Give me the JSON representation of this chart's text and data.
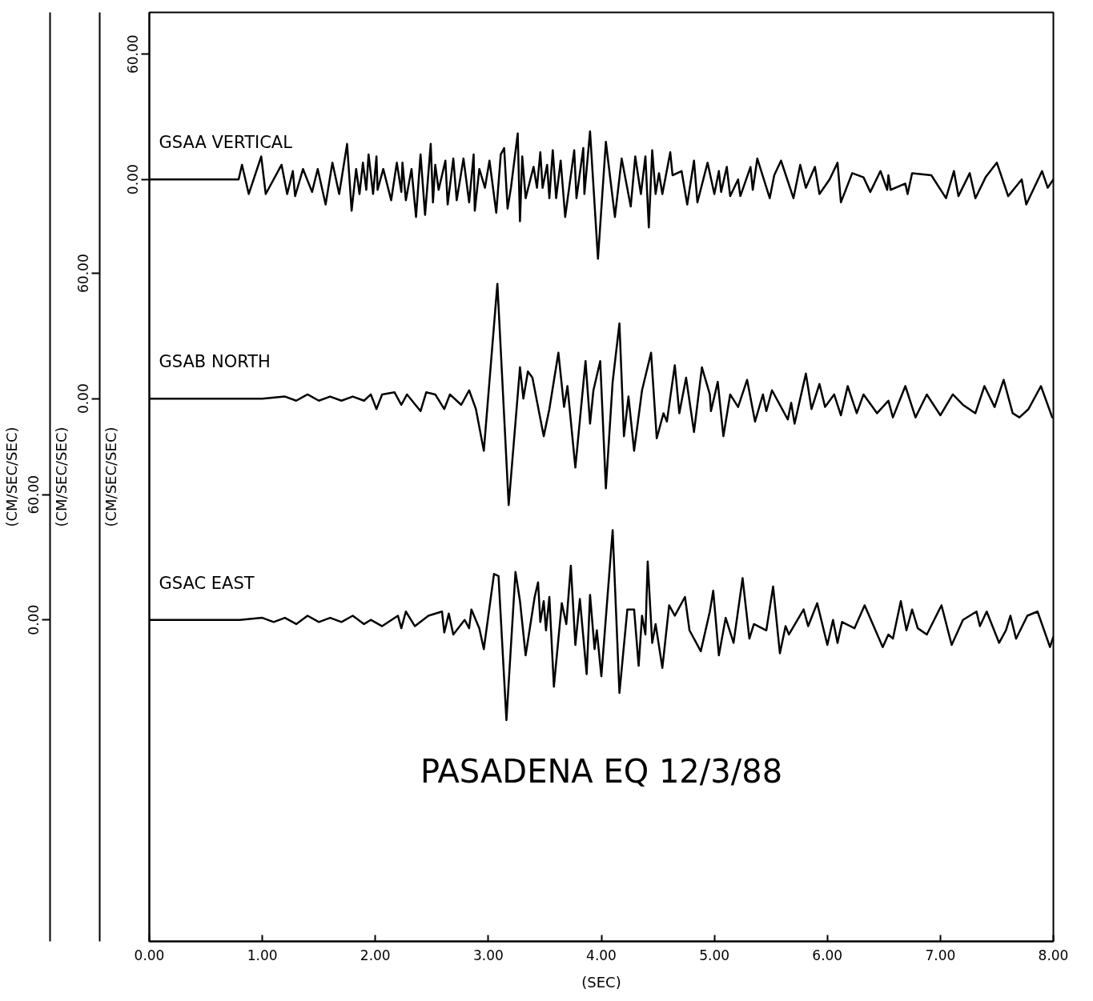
{
  "chart_data": {
    "type": "line",
    "title": "PASADENA EQ 12/3/88",
    "xlabel": "(SEC)",
    "ylabel": "(CM/SEC/SEC)",
    "y2label": "(CM/SEC/SEC)",
    "y3label": "(CM/SEC/SEC)",
    "xlim": [
      0,
      8
    ],
    "xticks": [
      {
        "value": 0,
        "label": "0.00"
      },
      {
        "value": 1,
        "label": "1.00"
      },
      {
        "value": 2,
        "label": "2.00"
      },
      {
        "value": 3,
        "label": "3.00"
      },
      {
        "value": 4,
        "label": "4.00"
      },
      {
        "value": 5,
        "label": "5.00"
      },
      {
        "value": 6,
        "label": "6.00"
      },
      {
        "value": 7,
        "label": "7.00"
      },
      {
        "value": 8,
        "label": "8.00"
      }
    ],
    "ylim": [
      -365,
      80
    ],
    "yticks": [
      {
        "value": 0,
        "label": "0.00"
      },
      {
        "value": 60,
        "label": "60.00"
      }
    ],
    "y2lim": [
      -260,
      185
    ],
    "y2ticks": [
      {
        "value": 0,
        "label": "0.00"
      },
      {
        "value": 60,
        "label": "60.00"
      }
    ],
    "y3lim": [
      -154,
      291
    ],
    "y3ticks": [
      {
        "value": 0,
        "label": "0.00"
      },
      {
        "value": 60,
        "label": "60.00"
      }
    ],
    "grid": false,
    "series": [
      {
        "name": "GSAA   VERTICAL",
        "color": "#000000",
        "axis": "y",
        "x": [
          0,
          0.75,
          0.79,
          0.82,
          0.88,
          0.99,
          1.03,
          1.17,
          1.22,
          1.27,
          1.29,
          1.36,
          1.44,
          1.49,
          1.56,
          1.62,
          1.68,
          1.75,
          1.79,
          1.83,
          1.86,
          1.89,
          1.92,
          1.94,
          1.98,
          2.01,
          2.02,
          2.07,
          2.14,
          2.19,
          2.23,
          2.24,
          2.27,
          2.32,
          2.36,
          2.4,
          2.44,
          2.49,
          2.51,
          2.53,
          2.56,
          2.62,
          2.64,
          2.69,
          2.72,
          2.78,
          2.83,
          2.87,
          2.88,
          2.92,
          2.97,
          3.01,
          3.07,
          3.11,
          3.14,
          3.17,
          3.2,
          3.26,
          3.28,
          3.3,
          3.33,
          3.4,
          3.43,
          3.46,
          3.48,
          3.52,
          3.54,
          3.57,
          3.6,
          3.64,
          3.68,
          3.76,
          3.78,
          3.84,
          3.85,
          3.9,
          3.97,
          4.04,
          4.12,
          4.18,
          4.26,
          4.3,
          4.35,
          4.39,
          4.42,
          4.45,
          4.48,
          4.51,
          4.54,
          4.61,
          4.63,
          4.71,
          4.76,
          4.82,
          4.85,
          4.94,
          5.0,
          5.04,
          5.06,
          5.11,
          5.14,
          5.21,
          5.23,
          5.32,
          5.34,
          5.38,
          5.49,
          5.53,
          5.59,
          5.7,
          5.76,
          5.81,
          5.89,
          5.93,
          6.02,
          6.09,
          6.12,
          6.22,
          6.32,
          6.38,
          6.47,
          6.53,
          6.54,
          6.56,
          6.69,
          6.71,
          6.75,
          6.92,
          7.05,
          7.12,
          7.16,
          7.26,
          7.31,
          7.4,
          7.5,
          7.6,
          7.72,
          7.76,
          7.9,
          7.95,
          8.0
        ],
        "values": [
          0,
          0,
          0,
          7,
          -7,
          11,
          -7,
          7,
          -7,
          4,
          -8,
          5,
          -6,
          5,
          -12,
          8,
          -7,
          17,
          -15,
          5,
          -7,
          8,
          -5,
          12,
          -7,
          11,
          -5,
          5,
          -10,
          8,
          -6,
          8,
          -10,
          5,
          -18,
          12,
          -17,
          17,
          -11,
          7,
          -5,
          9,
          -12,
          10,
          -10,
          10,
          -11,
          12,
          -15,
          5,
          -4,
          9,
          -16,
          12,
          15,
          -14,
          -4,
          22,
          -20,
          11,
          -9,
          6,
          -4,
          13,
          -4,
          7,
          -9,
          14,
          -9,
          9,
          -18,
          14,
          -9,
          15,
          -7,
          23,
          -38,
          18,
          -18,
          10,
          -13,
          11,
          -7,
          11,
          -23,
          14,
          -7,
          3,
          -7,
          13,
          2,
          4,
          -12,
          9,
          -11,
          8,
          -7,
          4,
          -6,
          6,
          -8,
          0,
          -8,
          6,
          -5,
          10,
          -9,
          2,
          9,
          -9,
          7,
          -4,
          6,
          -7,
          0,
          8,
          -11,
          3,
          1,
          -6,
          4,
          -5,
          2,
          -5,
          -2,
          -7,
          3,
          2,
          -9,
          4,
          -8,
          3,
          -9,
          1,
          8,
          -8,
          0,
          -12,
          4,
          -4,
          0
        ]
      },
      {
        "name": "GSAB   NORTH",
        "color": "#000000",
        "axis": "y2",
        "x": [
          0,
          1.0,
          1.2,
          1.3,
          1.4,
          1.5,
          1.6,
          1.7,
          1.8,
          1.9,
          1.96,
          2.01,
          2.06,
          2.17,
          2.23,
          2.28,
          2.4,
          2.45,
          2.53,
          2.61,
          2.66,
          2.76,
          2.83,
          2.89,
          2.96,
          3.08,
          3.18,
          3.28,
          3.31,
          3.35,
          3.39,
          3.49,
          3.54,
          3.62,
          3.67,
          3.7,
          3.77,
          3.86,
          3.9,
          3.93,
          3.99,
          4.04,
          4.1,
          4.16,
          4.2,
          4.24,
          4.29,
          4.36,
          4.44,
          4.49,
          4.55,
          4.58,
          4.65,
          4.69,
          4.75,
          4.82,
          4.89,
          4.96,
          4.97,
          5.03,
          5.08,
          5.14,
          5.21,
          5.29,
          5.36,
          5.43,
          5.46,
          5.51,
          5.65,
          5.68,
          5.71,
          5.81,
          5.86,
          5.93,
          5.98,
          6.06,
          6.12,
          6.18,
          6.26,
          6.32,
          6.44,
          6.54,
          6.58,
          6.69,
          6.78,
          6.88,
          7.0,
          7.11,
          7.2,
          7.31,
          7.39,
          7.48,
          7.56,
          7.64,
          7.7,
          7.78,
          7.89,
          7.99,
          8.0
        ],
        "values": [
          0,
          0,
          1,
          -1,
          2,
          -1,
          1,
          -1,
          1,
          -1,
          2,
          -5,
          2,
          3,
          -3,
          2,
          -6,
          3,
          2,
          -5,
          2,
          -3,
          4,
          -5,
          -25,
          55,
          -51,
          15,
          0,
          13,
          10,
          -18,
          -5,
          22,
          -4,
          6,
          -33,
          18,
          -12,
          4,
          18,
          -43,
          8,
          36,
          -18,
          1,
          -25,
          4,
          22,
          -19,
          -7,
          -11,
          16,
          -7,
          10,
          -16,
          15,
          2,
          -6,
          8,
          -18,
          2,
          -4,
          9,
          -11,
          2,
          -6,
          4,
          -10,
          -2,
          -12,
          12,
          -5,
          7,
          -4,
          2,
          -8,
          6,
          -7,
          2,
          -7,
          -1,
          -9,
          6,
          -9,
          2,
          -8,
          2,
          -3,
          -7,
          6,
          -4,
          9,
          -7,
          -9,
          -5,
          6,
          -9,
          -9
        ]
      },
      {
        "name": "GSAC   EAST",
        "color": "#000000",
        "axis": "y3",
        "x": [
          0,
          0.8,
          1.0,
          1.1,
          1.2,
          1.3,
          1.4,
          1.5,
          1.6,
          1.7,
          1.8,
          1.9,
          1.96,
          2.06,
          2.2,
          2.23,
          2.27,
          2.35,
          2.47,
          2.59,
          2.61,
          2.65,
          2.69,
          2.79,
          2.83,
          2.85,
          2.92,
          2.96,
          3.05,
          3.09,
          3.16,
          3.24,
          3.28,
          3.33,
          3.41,
          3.44,
          3.46,
          3.49,
          3.51,
          3.54,
          3.58,
          3.65,
          3.69,
          3.73,
          3.77,
          3.81,
          3.87,
          3.9,
          3.94,
          3.96,
          4.0,
          4.1,
          4.16,
          4.23,
          4.29,
          4.33,
          4.36,
          4.39,
          4.41,
          4.45,
          4.48,
          4.54,
          4.6,
          4.65,
          4.74,
          4.78,
          4.88,
          4.96,
          4.99,
          5.04,
          5.1,
          5.17,
          5.25,
          5.31,
          5.35,
          5.46,
          5.52,
          5.58,
          5.63,
          5.66,
          5.79,
          5.83,
          5.91,
          6.0,
          6.05,
          6.09,
          6.13,
          6.24,
          6.33,
          6.49,
          6.54,
          6.58,
          6.65,
          6.7,
          6.75,
          6.8,
          6.88,
          7.01,
          7.1,
          7.2,
          7.32,
          7.35,
          7.41,
          7.52,
          7.58,
          7.62,
          7.67,
          7.77,
          7.86,
          7.97,
          8.0
        ],
        "values": [
          0,
          0,
          1,
          -1,
          1,
          -2,
          2,
          -1,
          1,
          -1,
          2,
          -2,
          0,
          -3,
          2,
          -4,
          4,
          -3,
          2,
          4,
          -6,
          3,
          -7,
          0,
          -4,
          5,
          -4,
          -14,
          22,
          21,
          -48,
          23,
          9,
          -17,
          11,
          18,
          -1,
          9,
          -5,
          11,
          -32,
          8,
          -2,
          26,
          -12,
          10,
          -26,
          12,
          -14,
          -5,
          -27,
          43,
          -35,
          5,
          5,
          -22,
          2,
          -7,
          28,
          -11,
          -2,
          -23,
          7,
          2,
          11,
          -5,
          -15,
          4,
          14,
          -17,
          1,
          -11,
          20,
          -9,
          -2,
          -5,
          16,
          -16,
          -3,
          -7,
          5,
          -3,
          8,
          -12,
          0,
          -11,
          -1,
          -4,
          7,
          -13,
          -7,
          -9,
          9,
          -5,
          5,
          -4,
          -7,
          7,
          -12,
          0,
          4,
          -3,
          4,
          -11,
          -5,
          2,
          -9,
          2,
          4,
          -13,
          -8
        ]
      }
    ]
  }
}
